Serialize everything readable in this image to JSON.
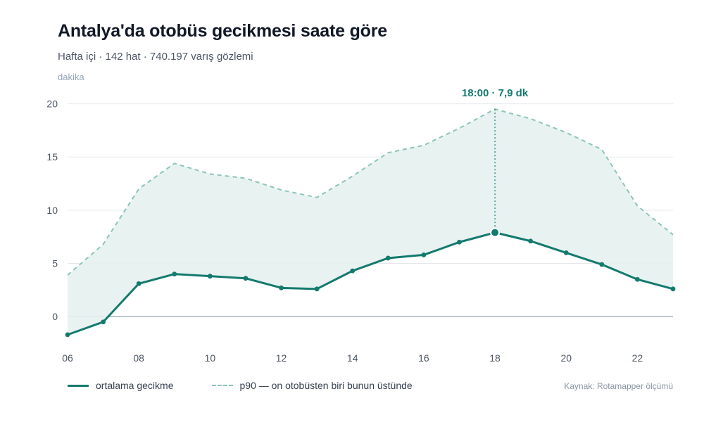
{
  "title": "Antalya'da otobüs gecikmesi saate göre",
  "subtitle": "Hafta içi · 142 hat · 740.197 varış gözlemi",
  "source": "Kaynak: Rotamapper ölçümü",
  "colors": {
    "mean": "#137a6e",
    "p90": "#8cc5b9",
    "band": "#e6f1ef",
    "grid": "#e5e7eb",
    "zero": "#8a9aa6"
  },
  "chart_data": {
    "type": "line",
    "ylabel": "dakika",
    "xlabel": "",
    "x": [
      6,
      7,
      8,
      9,
      10,
      11,
      12,
      13,
      14,
      15,
      16,
      17,
      18,
      19,
      20,
      21,
      22,
      23
    ],
    "xticks": [
      6,
      8,
      10,
      12,
      14,
      16,
      18,
      20,
      22
    ],
    "xtick_labels": [
      "06",
      "08",
      "10",
      "12",
      "14",
      "16",
      "18",
      "20",
      "22"
    ],
    "yticks": [
      0,
      5,
      10,
      15,
      20
    ],
    "xlim": [
      6,
      23
    ],
    "ylim": [
      -2.5,
      20.5
    ],
    "grid": true,
    "legend_position": "bottom-left",
    "series": [
      {
        "name": "ortalama gecikme",
        "style": "solid",
        "values": [
          -1.7,
          -0.5,
          3.1,
          4.0,
          3.8,
          3.6,
          2.7,
          2.6,
          4.3,
          5.5,
          5.8,
          7.0,
          7.9,
          7.1,
          6.0,
          4.9,
          3.5,
          2.6
        ]
      },
      {
        "name": "p90 — on otobüsten biri bunun üstünde",
        "style": "dashed",
        "values": [
          3.9,
          6.8,
          12.0,
          14.4,
          13.4,
          13.0,
          11.9,
          11.2,
          13.2,
          15.4,
          16.1,
          17.7,
          19.5,
          18.6,
          17.3,
          15.7,
          10.4,
          7.7
        ]
      }
    ],
    "annotation": {
      "x": 18,
      "series": "ortalama gecikme",
      "label": "18:00 · 7,9 dk"
    }
  }
}
